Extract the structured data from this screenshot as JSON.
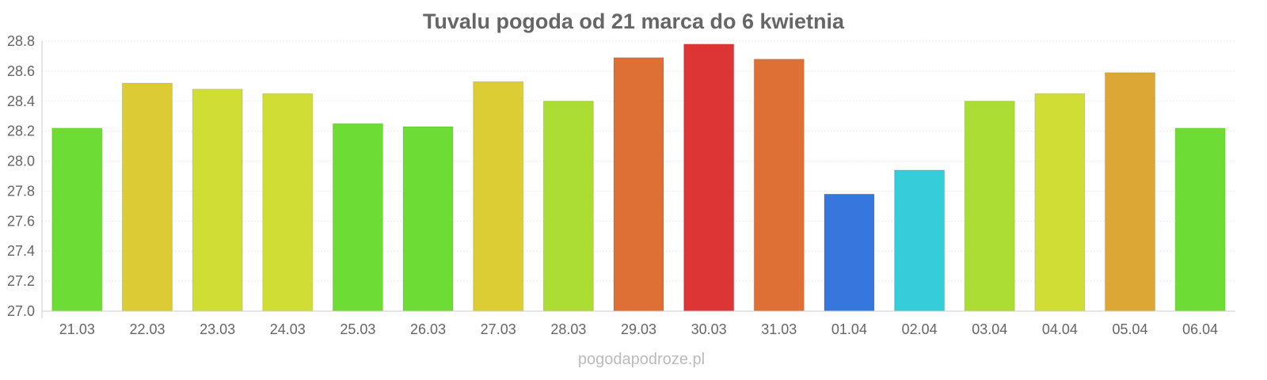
{
  "chart_data": {
    "type": "bar",
    "title": "Tuvalu pogoda od 21 marca do 6 kwietnia",
    "xlabel": "",
    "ylabel": "",
    "ylim": [
      27.0,
      28.8
    ],
    "yticks": [
      "27.0",
      "27.2",
      "27.4",
      "27.6",
      "27.8",
      "28.0",
      "28.2",
      "28.4",
      "28.6",
      "28.8"
    ],
    "grid": true,
    "categories": [
      "21.03",
      "22.03",
      "23.03",
      "24.03",
      "25.03",
      "26.03",
      "27.03",
      "28.03",
      "29.03",
      "30.03",
      "31.03",
      "01.04",
      "02.04",
      "03.04",
      "04.04",
      "05.04",
      "06.04"
    ],
    "values": [
      28.22,
      28.52,
      28.48,
      28.45,
      28.25,
      28.23,
      28.53,
      28.4,
      28.69,
      28.78,
      28.68,
      27.78,
      27.94,
      28.4,
      28.45,
      28.59,
      28.22
    ],
    "colors": [
      "#6ddd35",
      "#dccb35",
      "#d0dd35",
      "#d0dd35",
      "#6ddd35",
      "#6ddd35",
      "#dccd35",
      "#acdd35",
      "#df7035",
      "#dd3535",
      "#df7035",
      "#3577dd",
      "#35cdd9",
      "#acdd35",
      "#d0dd35",
      "#dda735",
      "#6ddd35"
    ]
  },
  "credit": "pogodapodroze.pl"
}
